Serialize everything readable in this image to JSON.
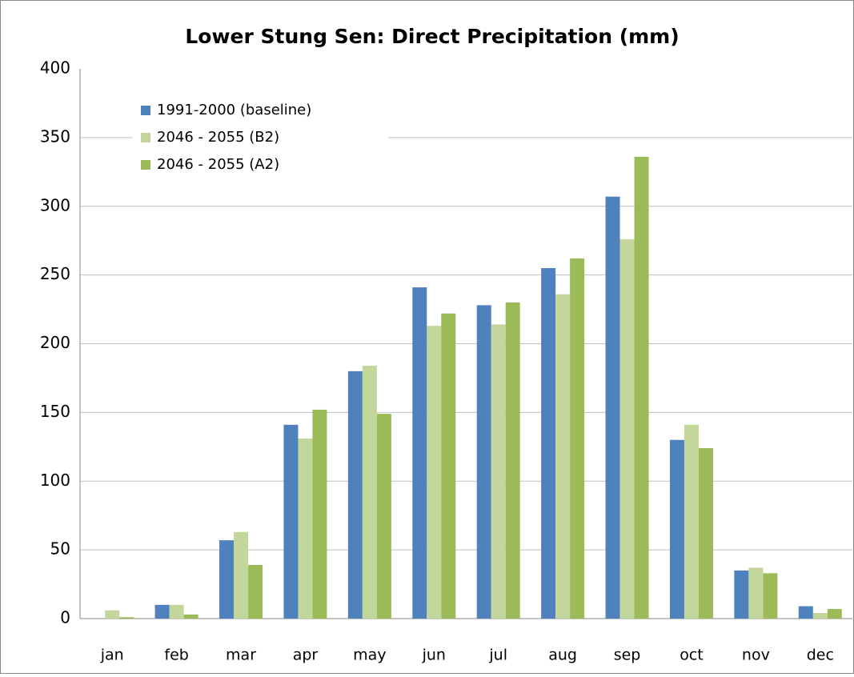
{
  "chart_data": {
    "type": "bar",
    "title": "Lower  Stung Sen: Direct Precipitation (mm)",
    "categories": [
      "jan",
      "feb",
      "mar",
      "apr",
      "may",
      "jun",
      "jul",
      "aug",
      "sep",
      "oct",
      "nov",
      "dec"
    ],
    "series": [
      {
        "name": "1991-2000 (baseline)",
        "color": "#4f81bd",
        "values": [
          0,
          10,
          57,
          141,
          180,
          241,
          228,
          255,
          307,
          130,
          35,
          9
        ]
      },
      {
        "name": "2046 - 2055 (B2)",
        "color": "#c3d69b",
        "values": [
          6,
          10,
          63,
          131,
          184,
          213,
          214,
          236,
          276,
          141,
          37,
          4
        ]
      },
      {
        "name": "2046 - 2055 (A2)",
        "color": "#9bbb59",
        "values": [
          1,
          3,
          39,
          152,
          149,
          222,
          230,
          262,
          336,
          124,
          33,
          7
        ]
      }
    ],
    "ylim": [
      0,
      400
    ],
    "yticks": [
      0,
      50,
      100,
      150,
      200,
      250,
      300,
      350,
      400
    ],
    "grid": true,
    "legend": "top-left"
  }
}
